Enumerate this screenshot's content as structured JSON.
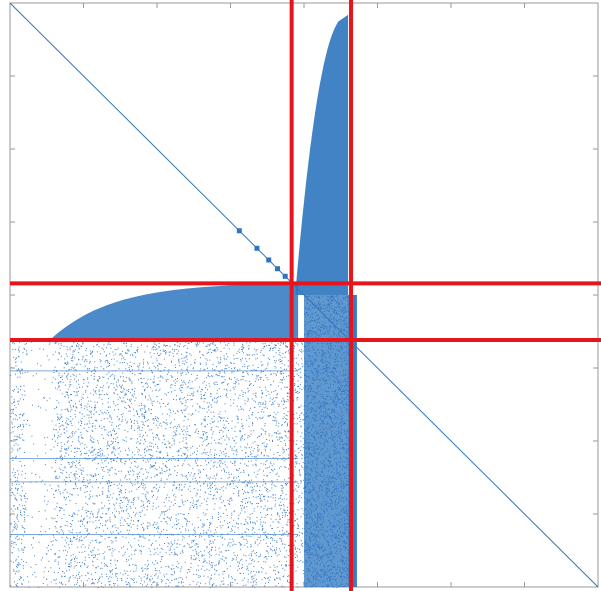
{
  "chart_data": {
    "type": "scatter",
    "kind": "sparsity-pattern",
    "title": "",
    "xlabel": "",
    "ylabel": "",
    "xlim": [
      0,
      1
    ],
    "ylim": [
      0,
      1
    ],
    "y_axis_direction": "down",
    "grid": false,
    "legend": "none",
    "tick_labels_visible": false,
    "x_ticks": [
      0,
      0.125,
      0.25,
      0.375,
      0.5,
      0.625,
      0.75,
      0.875,
      1
    ],
    "y_ticks": [
      0,
      0.125,
      0.25,
      0.375,
      0.5,
      0.625,
      0.75,
      0.875,
      1
    ],
    "colors": {
      "points": "#2e75c0",
      "partition_lines": "#e8141b",
      "axes": "#888888"
    },
    "series": [
      {
        "kind": "main-diagonal",
        "from": [
          0,
          0
        ],
        "to": [
          1,
          1
        ]
      },
      {
        "kind": "upper-right-profile",
        "x_range": [
          0.485,
          0.575
        ],
        "y_range": [
          0.02,
          0.5
        ]
      },
      {
        "kind": "middle-profile",
        "x_range": [
          0.07,
          0.49
        ],
        "y_range": [
          0.48,
          0.575
        ]
      },
      {
        "kind": "dense-vertical-band",
        "x_range": [
          0.5,
          0.575
        ],
        "y_range": [
          0.5,
          1
        ]
      },
      {
        "kind": "scattered-lower-block",
        "x_range": [
          0,
          0.5
        ],
        "y_range": [
          0.575,
          1
        ]
      },
      {
        "kind": "dense-column",
        "x_range": [
          0.575,
          0.59
        ],
        "y_range": [
          0.5,
          1
        ]
      },
      {
        "kind": "diagonal-blobs",
        "points": [
          [
            0.39,
            0.39
          ],
          [
            0.42,
            0.42
          ],
          [
            0.44,
            0.44
          ],
          [
            0.455,
            0.455
          ],
          [
            0.468,
            0.468
          ]
        ]
      }
    ],
    "partition_lines": {
      "vertical": [
        0.479,
        0.58
      ],
      "horizontal": [
        0.48,
        0.577
      ]
    }
  }
}
